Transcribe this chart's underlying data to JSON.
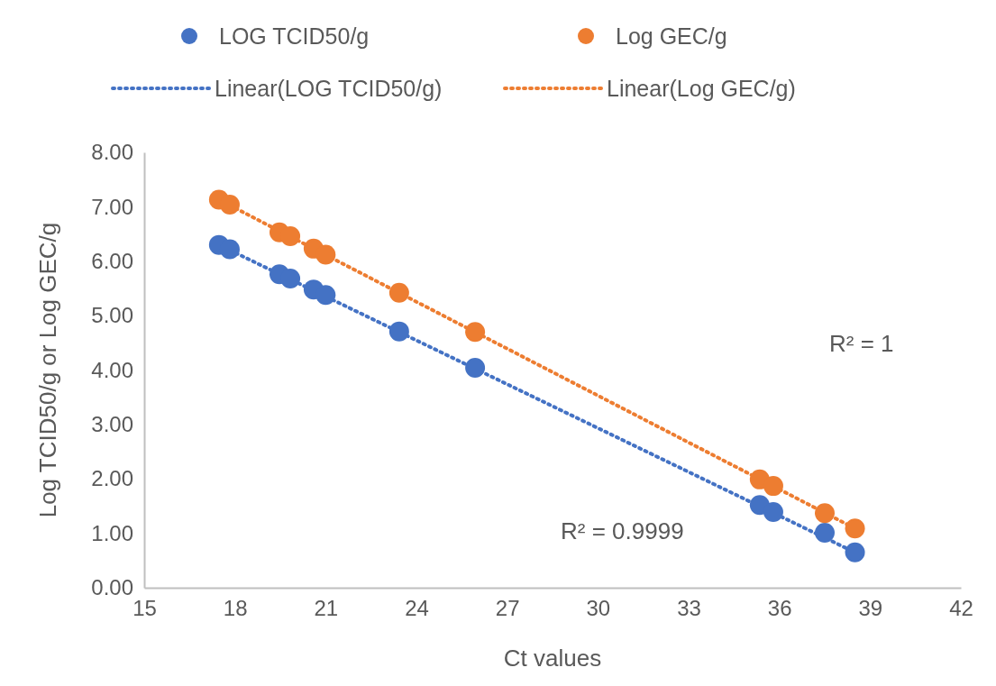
{
  "chart_data": {
    "type": "scatter",
    "xlabel": "Ct values",
    "ylabel": "Log TCID50/g or Log GEC/g",
    "xlim": [
      15,
      42
    ],
    "xticks": [
      15,
      18,
      21,
      24,
      27,
      30,
      33,
      36,
      39,
      42
    ],
    "ylim": [
      0,
      8
    ],
    "yticks": [
      {
        "value": 0,
        "label": "0.00"
      },
      {
        "value": 1,
        "label": "1.00"
      },
      {
        "value": 2,
        "label": "2.00"
      },
      {
        "value": 3,
        "label": "3.00"
      },
      {
        "value": 4,
        "label": "4.00"
      },
      {
        "value": 5,
        "label": "5.00"
      },
      {
        "value": 6,
        "label": "6.00"
      },
      {
        "value": 7,
        "label": "7.00"
      },
      {
        "value": 8,
        "label": "8.00"
      }
    ],
    "grid": false,
    "legend": "top",
    "marker": "circle",
    "series": [
      {
        "name": "LOG TCID50/g",
        "color": "#4472c4",
        "x": [
          17.47,
          17.83,
          19.47,
          19.83,
          20.6,
          21.0,
          23.43,
          25.94,
          35.35,
          35.8,
          37.5,
          38.5
        ],
        "values": [
          6.3,
          6.22,
          5.76,
          5.68,
          5.48,
          5.38,
          4.71,
          4.04,
          1.52,
          1.39,
          1.01,
          0.65
        ]
      },
      {
        "name": "Log GEC/g",
        "color": "#ed7d31",
        "x": [
          17.47,
          17.83,
          19.47,
          19.83,
          20.6,
          21.0,
          23.43,
          25.94,
          35.35,
          35.8,
          37.5,
          38.5
        ],
        "values": [
          7.13,
          7.04,
          6.53,
          6.46,
          6.23,
          6.12,
          5.42,
          4.7,
          1.99,
          1.87,
          1.37,
          1.09
        ]
      },
      {
        "name": "Linear(LOG TCID50/g)",
        "type": "line",
        "line_style": "dotted",
        "marker": "none",
        "color": "#4472c4",
        "x": [
          17.47,
          38.5
        ],
        "values": [
          6.3,
          0.65
        ]
      },
      {
        "name": "Linear(Log GEC/g)",
        "type": "line",
        "line_style": "dotted",
        "marker": "none",
        "color": "#ed7d31",
        "x": [
          17.47,
          38.5
        ],
        "values": [
          7.13,
          1.09
        ]
      }
    ],
    "annotations": [
      "R² = 1",
      "R² = 0.9999"
    ]
  }
}
